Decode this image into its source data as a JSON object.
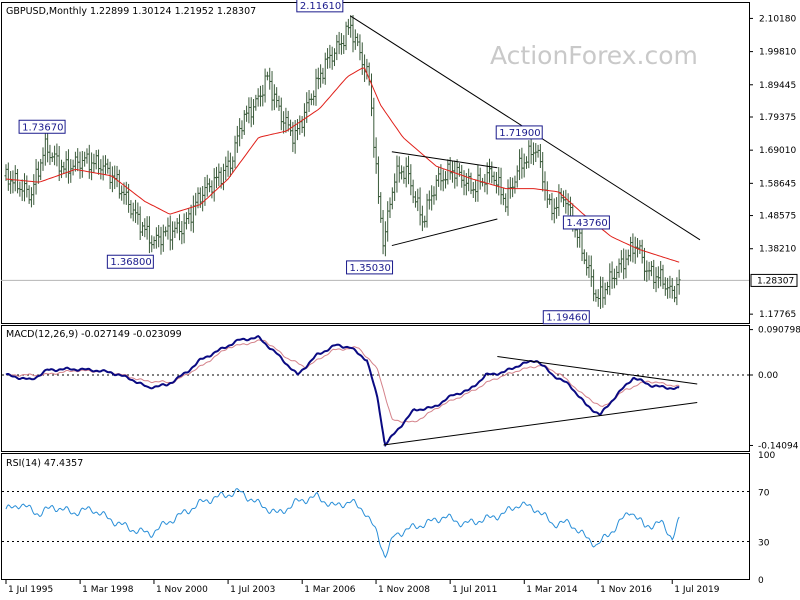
{
  "chart_data": {
    "type": "candlestick",
    "watermark": "ActionForex.com",
    "x_tick_labels": [
      "1 Jul 1995",
      "1 Mar 1998",
      "1 Nov 2000",
      "1 Jul 2003",
      "1 Mar 2006",
      "1 Nov 2008",
      "1 Jul 2011",
      "1 Mar 2014",
      "1 Nov 2016",
      "1 Jul 2019"
    ],
    "price_panel": {
      "header": "GBPUSD,Monthly  1.22899 1.30124 1.21952 1.28307",
      "ylim": [
        1.15,
        2.15
      ],
      "y_tick_labels": [
        {
          "label": "2.10180",
          "value": 2.1018
        },
        {
          "label": "1.99810",
          "value": 1.9981
        },
        {
          "label": "1.89445",
          "value": 1.89445
        },
        {
          "label": "1.79375",
          "value": 1.79375
        },
        {
          "label": "1.69010",
          "value": 1.6901
        },
        {
          "label": "1.58645",
          "value": 1.58645
        },
        {
          "label": "1.48575",
          "value": 1.48575
        },
        {
          "label": "1.38210",
          "value": 1.3821
        },
        {
          "label": "1.17765",
          "value": 1.17765
        }
      ],
      "last_price": {
        "label": "1.28307",
        "value": 1.28307
      },
      "callouts": [
        {
          "label": "2.11610",
          "date": 2007.85,
          "value": 2.1161
        },
        {
          "label": "1.73670",
          "date": 1996.8,
          "value": 1.7367
        },
        {
          "label": "1.36800",
          "date": 2000.7,
          "value": 1.368
        },
        {
          "label": "1.35030",
          "date": 2009.1,
          "value": 1.3503
        },
        {
          "label": "1.71900",
          "date": 2014.6,
          "value": 1.719
        },
        {
          "label": "1.43760",
          "date": 2016.3,
          "value": 1.4376
        },
        {
          "label": "1.19460",
          "date": 2016.8,
          "value": 1.1946
        }
      ],
      "anchors": [
        [
          1995.5,
          1.61
        ],
        [
          1996.4,
          1.55
        ],
        [
          1996.9,
          1.7
        ],
        [
          1997.6,
          1.63
        ],
        [
          1998.3,
          1.66
        ],
        [
          1999.0,
          1.64
        ],
        [
          1999.5,
          1.59
        ],
        [
          2000.2,
          1.48
        ],
        [
          2000.8,
          1.4
        ],
        [
          2001.2,
          1.43
        ],
        [
          2001.9,
          1.45
        ],
        [
          2002.5,
          1.55
        ],
        [
          2003.1,
          1.6
        ],
        [
          2003.6,
          1.65
        ],
        [
          2004.0,
          1.78
        ],
        [
          2004.6,
          1.85
        ],
        [
          2004.9,
          1.92
        ],
        [
          2005.4,
          1.8
        ],
        [
          2005.9,
          1.73
        ],
        [
          2006.5,
          1.86
        ],
        [
          2007.0,
          1.96
        ],
        [
          2007.6,
          2.03
        ],
        [
          2007.9,
          2.08
        ],
        [
          2008.3,
          1.98
        ],
        [
          2008.6,
          1.9
        ],
        [
          2008.9,
          1.55
        ],
        [
          2009.1,
          1.4
        ],
        [
          2009.5,
          1.61
        ],
        [
          2009.9,
          1.63
        ],
        [
          2010.5,
          1.47
        ],
        [
          2011.0,
          1.59
        ],
        [
          2011.6,
          1.63
        ],
        [
          2012.3,
          1.57
        ],
        [
          2013.0,
          1.62
        ],
        [
          2013.5,
          1.53
        ],
        [
          2014.0,
          1.64
        ],
        [
          2014.6,
          1.7
        ],
        [
          2015.1,
          1.5
        ],
        [
          2015.6,
          1.55
        ],
        [
          2016.1,
          1.42
        ],
        [
          2016.5,
          1.31
        ],
        [
          2016.8,
          1.22
        ],
        [
          2017.3,
          1.29
        ],
        [
          2017.9,
          1.36
        ],
        [
          2018.2,
          1.4
        ],
        [
          2018.6,
          1.31
        ],
        [
          2019.1,
          1.29
        ],
        [
          2019.5,
          1.24
        ],
        [
          2019.75,
          1.283
        ]
      ],
      "ma_anchors": [
        [
          1995.5,
          1.6
        ],
        [
          1996.7,
          1.59
        ],
        [
          1998.0,
          1.63
        ],
        [
          1999.3,
          1.61
        ],
        [
          2000.5,
          1.53
        ],
        [
          2001.4,
          1.49
        ],
        [
          2002.5,
          1.52
        ],
        [
          2003.5,
          1.6
        ],
        [
          2004.6,
          1.73
        ],
        [
          2005.6,
          1.75
        ],
        [
          2006.8,
          1.82
        ],
        [
          2007.8,
          1.92
        ],
        [
          2008.4,
          1.95
        ],
        [
          2009.0,
          1.83
        ],
        [
          2009.8,
          1.73
        ],
        [
          2011.0,
          1.64
        ],
        [
          2012.3,
          1.6
        ],
        [
          2013.5,
          1.57
        ],
        [
          2014.5,
          1.57
        ],
        [
          2015.4,
          1.56
        ],
        [
          2016.3,
          1.49
        ],
        [
          2017.3,
          1.42
        ],
        [
          2018.3,
          1.38
        ],
        [
          2019.75,
          1.34
        ]
      ],
      "trendlines": [
        {
          "name": "long-term falling resistance",
          "from": [
            2007.9,
            2.11
          ],
          "to": [
            2020.5,
            1.41
          ]
        },
        {
          "name": "triangle upper",
          "from": [
            2009.4,
            1.685
          ],
          "to": [
            2013.2,
            1.635
          ]
        },
        {
          "name": "triangle lower",
          "from": [
            2009.4,
            1.392
          ],
          "to": [
            2013.2,
            1.475
          ]
        }
      ]
    },
    "macd_panel": {
      "header": "MACD(12,26,9) -0.027149 -0.023099",
      "ylim": [
        -0.152,
        0.098
      ],
      "y_tick_labels": [
        {
          "label": "0.090798",
          "value": 0.090798
        },
        {
          "label": "0.00",
          "value": 0.0
        },
        {
          "label": "-0.14094",
          "value": -0.14094
        }
      ],
      "macd_anchors": [
        [
          1995.5,
          0.0
        ],
        [
          1996.4,
          -0.01
        ],
        [
          1997.0,
          0.01
        ],
        [
          1997.8,
          0.012
        ],
        [
          1998.6,
          0.01
        ],
        [
          1999.3,
          0.005
        ],
        [
          2000.0,
          -0.008
        ],
        [
          2000.6,
          -0.025
        ],
        [
          2001.3,
          -0.02
        ],
        [
          2002.0,
          0.005
        ],
        [
          2002.5,
          0.03
        ],
        [
          2003.2,
          0.05
        ],
        [
          2003.9,
          0.07
        ],
        [
          2004.6,
          0.075
        ],
        [
          2005.3,
          0.04
        ],
        [
          2006.0,
          0.0
        ],
        [
          2006.7,
          0.04
        ],
        [
          2007.4,
          0.06
        ],
        [
          2007.9,
          0.055
        ],
        [
          2008.5,
          0.03
        ],
        [
          2008.9,
          -0.05
        ],
        [
          2009.15,
          -0.14
        ],
        [
          2009.6,
          -0.11
        ],
        [
          2010.2,
          -0.07
        ],
        [
          2010.9,
          -0.065
        ],
        [
          2011.6,
          -0.04
        ],
        [
          2012.2,
          -0.03
        ],
        [
          2012.8,
          0.0
        ],
        [
          2013.4,
          0.005
        ],
        [
          2014.0,
          0.02
        ],
        [
          2014.6,
          0.03
        ],
        [
          2015.2,
          0.0
        ],
        [
          2015.8,
          -0.02
        ],
        [
          2016.4,
          -0.06
        ],
        [
          2016.9,
          -0.08
        ],
        [
          2017.5,
          -0.04
        ],
        [
          2018.1,
          -0.005
        ],
        [
          2018.7,
          -0.02
        ],
        [
          2019.2,
          -0.025
        ],
        [
          2019.75,
          -0.027
        ]
      ],
      "signal_anchors": [
        [
          1995.5,
          0.0
        ],
        [
          1996.8,
          0.0
        ],
        [
          1998.0,
          0.009
        ],
        [
          1999.3,
          0.006
        ],
        [
          2000.5,
          -0.012
        ],
        [
          2001.5,
          -0.015
        ],
        [
          2002.6,
          0.02
        ],
        [
          2003.5,
          0.055
        ],
        [
          2004.8,
          0.07
        ],
        [
          2005.6,
          0.035
        ],
        [
          2006.3,
          0.015
        ],
        [
          2007.3,
          0.05
        ],
        [
          2008.2,
          0.055
        ],
        [
          2008.9,
          0.01
        ],
        [
          2009.4,
          -0.09
        ],
        [
          2010.2,
          -0.095
        ],
        [
          2011.2,
          -0.06
        ],
        [
          2012.2,
          -0.035
        ],
        [
          2013.0,
          -0.01
        ],
        [
          2014.0,
          0.01
        ],
        [
          2014.8,
          0.02
        ],
        [
          2015.5,
          0.0
        ],
        [
          2016.3,
          -0.04
        ],
        [
          2017.0,
          -0.065
        ],
        [
          2017.8,
          -0.03
        ],
        [
          2018.6,
          -0.012
        ],
        [
          2019.75,
          -0.023
        ]
      ],
      "trendlines": [
        {
          "name": "MACD upper",
          "from": [
            2013.2,
            0.037
          ],
          "to": [
            2020.4,
            -0.018
          ]
        },
        {
          "name": "MACD lower",
          "from": [
            2009.1,
            -0.14
          ],
          "to": [
            2020.4,
            -0.055
          ]
        }
      ]
    },
    "rsi_panel": {
      "header": "RSI(14) 47.4357",
      "ylim": [
        0,
        100
      ],
      "y_tick_labels": [
        {
          "label": "100",
          "value": 100
        },
        {
          "label": "70",
          "value": 70
        },
        {
          "label": "30",
          "value": 30
        },
        {
          "label": "0",
          "value": 0
        }
      ],
      "rsi_anchors": [
        [
          1995.5,
          55
        ],
        [
          1996.0,
          60
        ],
        [
          1996.7,
          52
        ],
        [
          1997.2,
          58
        ],
        [
          1997.9,
          53
        ],
        [
          1998.6,
          56
        ],
        [
          1999.3,
          47
        ],
        [
          2000.0,
          40
        ],
        [
          2000.7,
          36
        ],
        [
          2001.3,
          45
        ],
        [
          2002.0,
          54
        ],
        [
          2002.6,
          62
        ],
        [
          2003.2,
          66
        ],
        [
          2003.9,
          70
        ],
        [
          2004.6,
          60
        ],
        [
          2005.3,
          52
        ],
        [
          2006.0,
          62
        ],
        [
          2006.7,
          66
        ],
        [
          2007.3,
          58
        ],
        [
          2007.9,
          62
        ],
        [
          2008.4,
          55
        ],
        [
          2008.9,
          35
        ],
        [
          2009.15,
          18
        ],
        [
          2009.5,
          35
        ],
        [
          2010.0,
          40
        ],
        [
          2010.7,
          45
        ],
        [
          2011.3,
          50
        ],
        [
          2012.0,
          44
        ],
        [
          2012.8,
          48
        ],
        [
          2013.4,
          52
        ],
        [
          2014.0,
          60
        ],
        [
          2014.6,
          56
        ],
        [
          2015.2,
          44
        ],
        [
          2015.8,
          45
        ],
        [
          2016.4,
          33
        ],
        [
          2016.8,
          27
        ],
        [
          2017.4,
          40
        ],
        [
          2018.0,
          55
        ],
        [
          2018.5,
          42
        ],
        [
          2019.1,
          45
        ],
        [
          2019.5,
          33
        ],
        [
          2019.75,
          47
        ]
      ]
    }
  }
}
